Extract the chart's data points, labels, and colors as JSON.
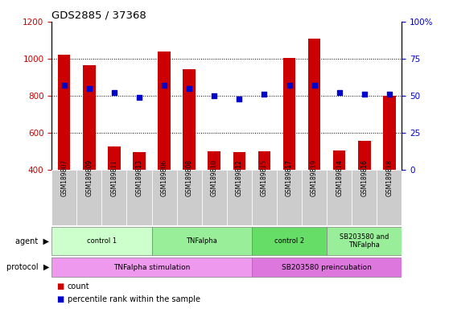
{
  "title": "GDS2885 / 37368",
  "samples": [
    "GSM189807",
    "GSM189809",
    "GSM189811",
    "GSM189813",
    "GSM189806",
    "GSM189808",
    "GSM189810",
    "GSM189812",
    "GSM189815",
    "GSM189817",
    "GSM189819",
    "GSM189814",
    "GSM189816",
    "GSM189818"
  ],
  "counts": [
    1020,
    965,
    528,
    497,
    1040,
    942,
    500,
    497,
    500,
    1005,
    1110,
    505,
    555,
    800
  ],
  "percentile_ranks": [
    57,
    55,
    52,
    49,
    57,
    55,
    50,
    48,
    51,
    57,
    57,
    52,
    51,
    51
  ],
  "ylim_left": [
    400,
    1200
  ],
  "ylim_right": [
    0,
    100
  ],
  "yticks_left": [
    400,
    600,
    800,
    1000,
    1200
  ],
  "yticks_right": [
    0,
    25,
    50,
    75,
    100
  ],
  "bar_color": "#cc0000",
  "dot_color": "#0000cc",
  "bar_bottom": 400,
  "agents": [
    {
      "label": "control 1",
      "start": 0,
      "end": 3,
      "color": "#ccffcc"
    },
    {
      "label": "TNFalpha",
      "start": 4,
      "end": 7,
      "color": "#99ee99"
    },
    {
      "label": "control 2",
      "start": 8,
      "end": 10,
      "color": "#66dd66"
    },
    {
      "label": "SB203580 and\nTNFalpha",
      "start": 11,
      "end": 13,
      "color": "#99ee99"
    }
  ],
  "protocols": [
    {
      "label": "TNFalpha stimulation",
      "start": 0,
      "end": 7,
      "color": "#ee99ee"
    },
    {
      "label": "SB203580 preincubation",
      "start": 8,
      "end": 13,
      "color": "#dd77dd"
    }
  ],
  "legend_count_color": "#cc0000",
  "legend_dot_color": "#0000cc",
  "axis_color_left": "#cc0000",
  "axis_color_right": "#0000cc",
  "grid_yticks": [
    600,
    800,
    1000
  ],
  "bg_color": "#ffffff",
  "sample_label_bg": "#cccccc"
}
